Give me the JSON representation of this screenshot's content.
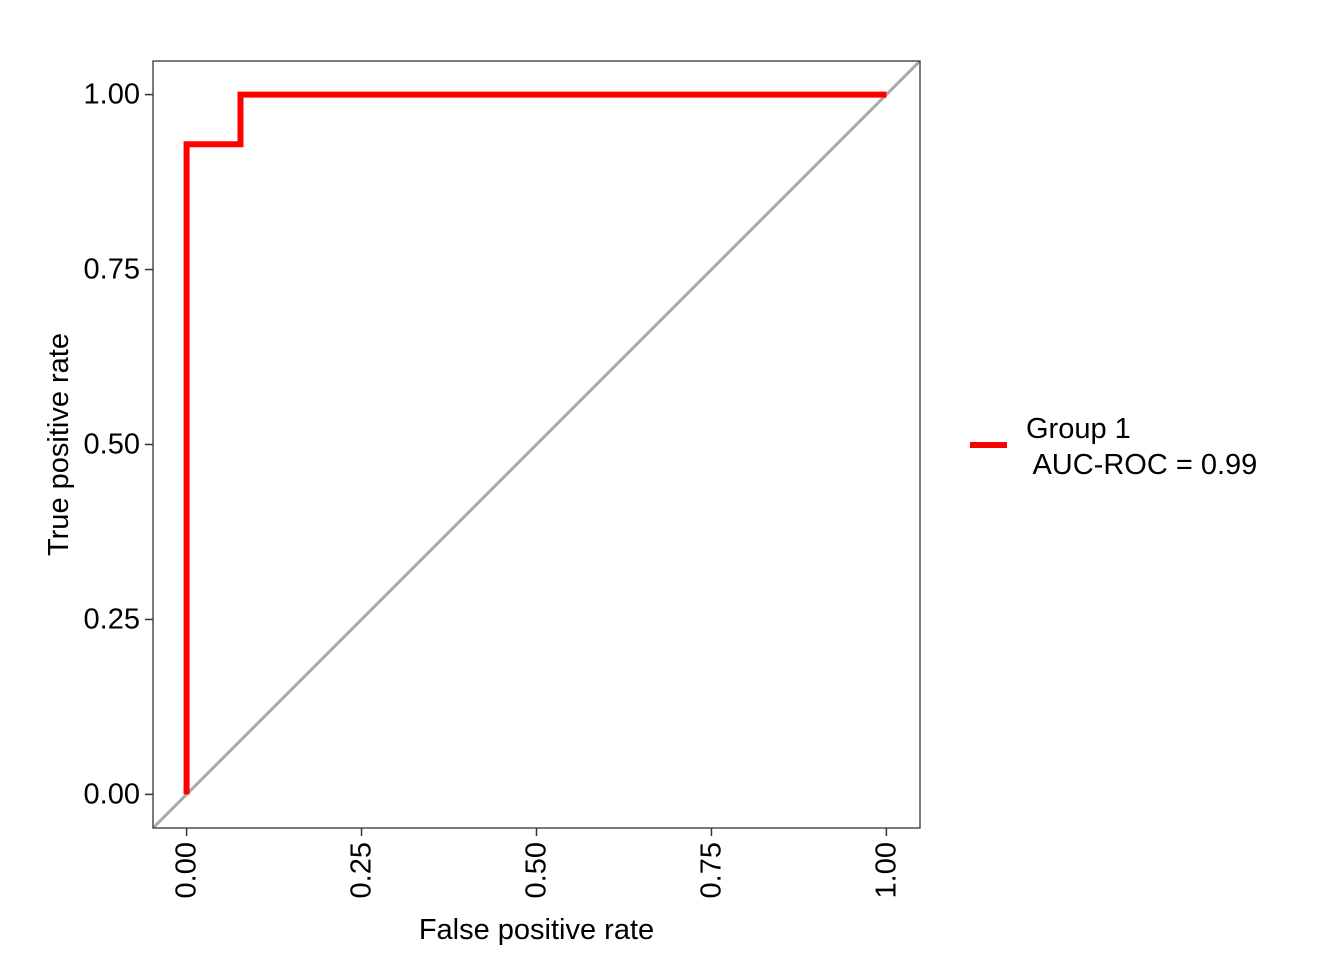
{
  "chart_data": {
    "type": "line",
    "xlabel": "False positive rate",
    "ylabel": "True positive rate",
    "xlim": [
      -0.048,
      1.048
    ],
    "ylim": [
      -0.048,
      1.048
    ],
    "x_ticks": [
      0,
      0.25,
      0.5,
      0.75,
      1
    ],
    "x_tick_labels": [
      "0.00",
      "0.25",
      "0.50",
      "0.75",
      "1.00"
    ],
    "y_ticks": [
      0,
      0.25,
      0.5,
      0.75,
      1
    ],
    "y_tick_labels": [
      "0.00",
      "0.25",
      "0.50",
      "0.75",
      "1.00"
    ],
    "x_tick_label_rotation": "vertical",
    "grid": false,
    "legend_position": "right",
    "reference_line": {
      "x": [
        -0.048,
        1.048
      ],
      "y": [
        -0.048,
        1.048
      ],
      "color": "#aaaaaa"
    },
    "series": [
      {
        "name": "Group 1",
        "legend_label_line1": "Group 1",
        "legend_label_line2": " AUC-ROC = 0.99",
        "color": "#ff0000",
        "x": [
          0,
          0,
          0.077,
          0.077,
          1
        ],
        "y": [
          0,
          0.929,
          0.929,
          1,
          1
        ]
      }
    ]
  }
}
